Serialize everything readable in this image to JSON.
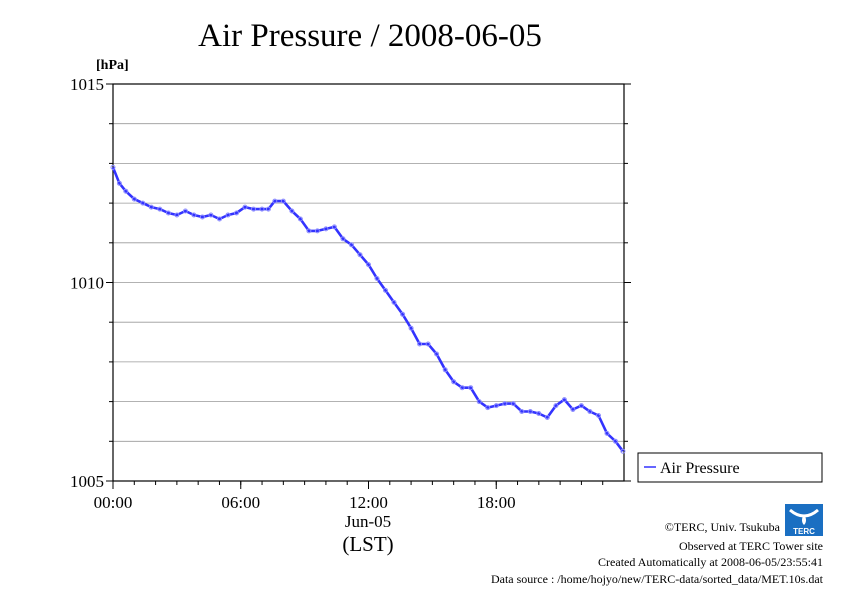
{
  "chart_data": {
    "type": "line",
    "title": "Air Pressure / 2008-06-05",
    "unit_label": "[hPa]",
    "xlabel_date": "Jun-05",
    "xlabel": "(LST)",
    "ylim": [
      1005,
      1015
    ],
    "xlim_hours": [
      0,
      24
    ],
    "y_ticks": [
      {
        "value": 1005,
        "label": "1005"
      },
      {
        "value": 1010,
        "label": "1010"
      },
      {
        "value": 1015,
        "label": "1015"
      }
    ],
    "y_minor_step": 1,
    "x_ticks": [
      {
        "value": 0,
        "label": "00:00"
      },
      {
        "value": 6,
        "label": "06:00"
      },
      {
        "value": 12,
        "label": "12:00"
      },
      {
        "value": 18,
        "label": "18:00"
      }
    ],
    "grid": true,
    "legend_position": "right",
    "series": [
      {
        "name": "Air Pressure",
        "color": "#3333ff",
        "x": [
          0.0,
          0.3,
          0.6,
          1.0,
          1.4,
          1.8,
          2.2,
          2.6,
          3.0,
          3.4,
          3.8,
          4.2,
          4.6,
          5.0,
          5.4,
          5.8,
          6.2,
          6.6,
          7.0,
          7.3,
          7.6,
          8.0,
          8.4,
          8.8,
          9.2,
          9.6,
          10.0,
          10.4,
          10.8,
          11.2,
          11.6,
          12.0,
          12.4,
          12.8,
          13.2,
          13.6,
          14.0,
          14.4,
          14.8,
          15.2,
          15.6,
          16.0,
          16.4,
          16.8,
          17.2,
          17.6,
          18.0,
          18.4,
          18.8,
          19.2,
          19.6,
          20.0,
          20.4,
          20.8,
          21.2,
          21.6,
          22.0,
          22.4,
          22.8,
          23.2,
          23.6,
          23.95
        ],
        "y": [
          1012.9,
          1012.5,
          1012.3,
          1012.1,
          1012.0,
          1011.9,
          1011.85,
          1011.75,
          1011.7,
          1011.8,
          1011.7,
          1011.65,
          1011.7,
          1011.6,
          1011.7,
          1011.75,
          1011.9,
          1011.85,
          1011.85,
          1011.85,
          1012.05,
          1012.05,
          1011.8,
          1011.6,
          1011.3,
          1011.3,
          1011.35,
          1011.4,
          1011.1,
          1010.95,
          1010.7,
          1010.45,
          1010.1,
          1009.8,
          1009.5,
          1009.2,
          1008.85,
          1008.45,
          1008.45,
          1008.2,
          1007.8,
          1007.5,
          1007.35,
          1007.35,
          1007.0,
          1006.85,
          1006.9,
          1006.95,
          1006.95,
          1006.75,
          1006.75,
          1006.7,
          1006.6,
          1006.9,
          1007.05,
          1006.8,
          1006.9,
          1006.75,
          1006.65,
          1006.2,
          1006.0,
          1005.75
        ]
      }
    ]
  },
  "footer": {
    "credit": "©TERC, Univ. Tsukuba",
    "site": "Observed at TERC Tower site",
    "created": "Created Automatically at 2008-06-05/23:55:41",
    "source": "Data source : /home/hojyo/new/TERC-data/sorted_data/MET.10s.dat",
    "logo_text": "TERC",
    "logo_color": "#1a6fc2"
  }
}
